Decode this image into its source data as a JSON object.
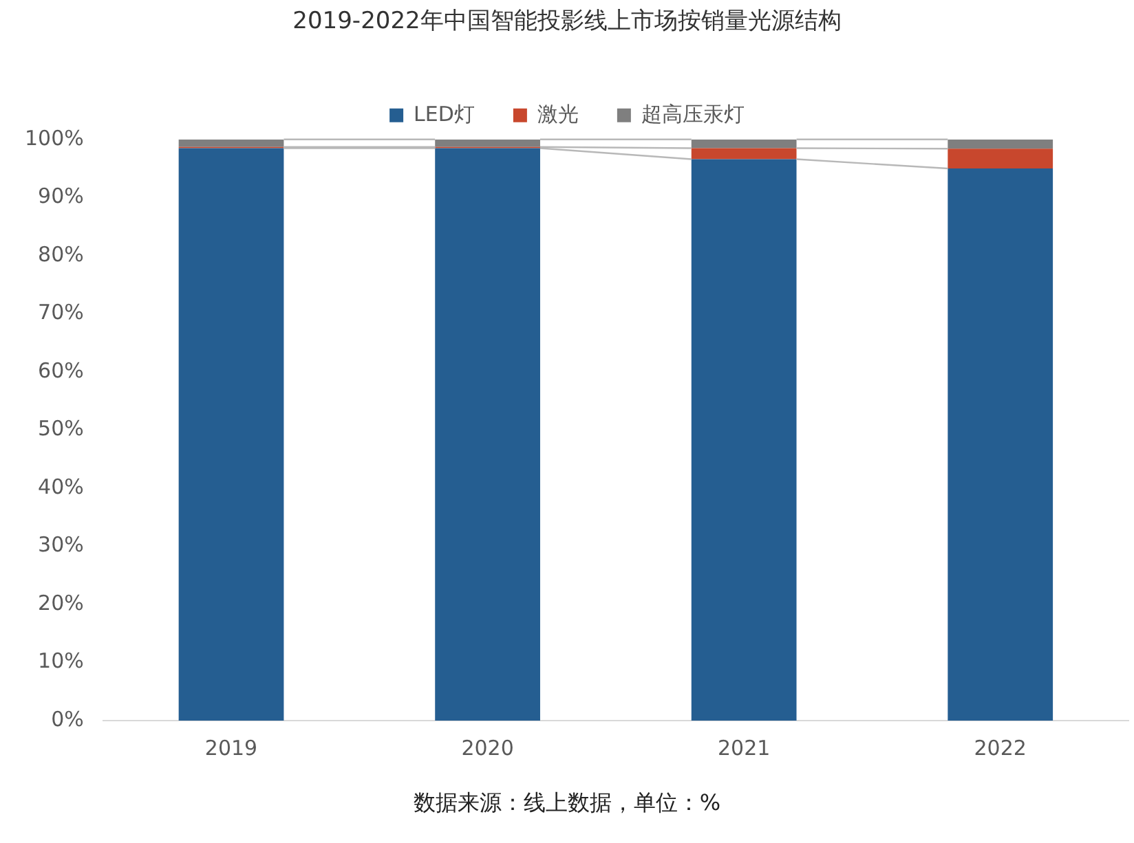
{
  "chart_data": {
    "type": "bar",
    "title": "2019-2022年中国智能投影线上市场按销量光源结构",
    "categories": [
      "2019",
      "2020",
      "2021",
      "2022"
    ],
    "series": [
      {
        "name": "LED灯",
        "color": "#255e91",
        "values": [
          98.5,
          98.5,
          96.6,
          95.0
        ]
      },
      {
        "name": "激光",
        "color": "#c8472d",
        "values": [
          0.2,
          0.2,
          1.9,
          3.4
        ]
      },
      {
        "name": "超高压汞灯",
        "color": "#7f7f7f",
        "values": [
          1.3,
          1.3,
          1.5,
          1.6
        ]
      }
    ],
    "stacked": true,
    "ylim": [
      0,
      100
    ],
    "yticks": [
      {
        "value": 0,
        "label": "0%"
      },
      {
        "value": 10,
        "label": "10%"
      },
      {
        "value": 20,
        "label": "20%"
      },
      {
        "value": 30,
        "label": "30%"
      },
      {
        "value": 40,
        "label": "40%"
      },
      {
        "value": 50,
        "label": "50%"
      },
      {
        "value": 60,
        "label": "60%"
      },
      {
        "value": 70,
        "label": "70%"
      },
      {
        "value": 80,
        "label": "80%"
      },
      {
        "value": 90,
        "label": "90%"
      },
      {
        "value": 100,
        "label": "100%"
      }
    ],
    "grid": false,
    "legend": "top",
    "annotations": [
      "数据来源：线上数据，单位：%"
    ]
  }
}
